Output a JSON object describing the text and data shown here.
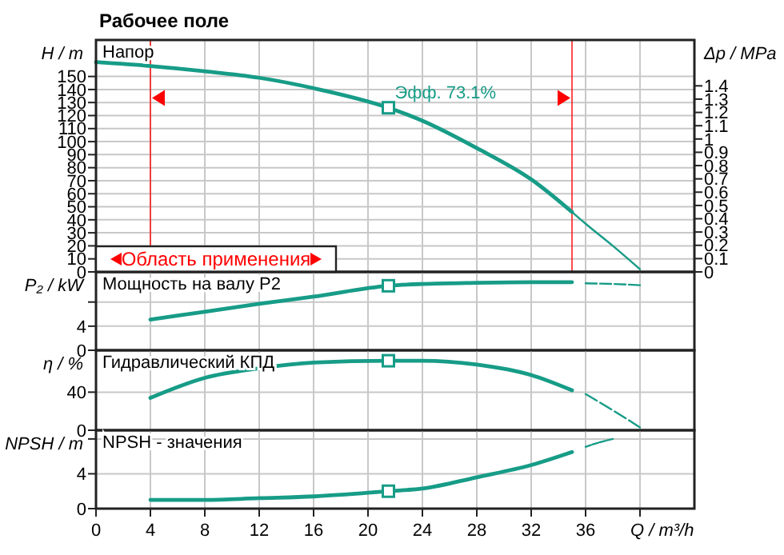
{
  "chart_data": [
    {
      "type": "line",
      "title": "Рабочее поле",
      "ylabel": "H / m",
      "y2label": "Δp / MPa",
      "xlim": [
        0,
        44
      ],
      "ylim": [
        0,
        178
      ],
      "yticks": [
        0,
        10,
        20,
        30,
        40,
        50,
        60,
        70,
        80,
        90,
        100,
        110,
        120,
        130,
        140,
        150
      ],
      "y2lim": [
        0,
        1.745
      ],
      "y2ticks": [
        0,
        0.1,
        0.2,
        0.3,
        0.4,
        0.5,
        0.6,
        0.7,
        0.8,
        0.9,
        1,
        1.1,
        1.2,
        1.3,
        1.4
      ],
      "xticks": [
        0,
        4,
        8,
        12,
        16,
        20,
        24,
        28,
        32,
        36,
        40
      ],
      "tick_labels": "y",
      "grid": true,
      "annotations": [
        "Напор",
        {
          "text": "Эфф.  73.1%",
          "x": 21.5,
          "y": 126
        },
        "Область применения"
      ],
      "ref_lines": [
        {
          "axis": "x",
          "value": 4,
          "color": "#ff0000"
        },
        {
          "axis": "x",
          "value": 35,
          "color": "#ff0000"
        }
      ],
      "series": [
        {
          "type": "line",
          "color": "#179c87",
          "line_style": "solid",
          "x": [
            0,
            4,
            8,
            12,
            16,
            21.5,
            24,
            28,
            32,
            35
          ],
          "values": [
            161,
            158,
            154,
            149,
            141,
            126,
            116,
            95,
            71,
            46
          ]
        },
        {
          "type": "line",
          "color": "#179c87",
          "line_style": "solid",
          "x": [
            35,
            36,
            38,
            40
          ],
          "values": [
            46,
            37,
            20,
            2
          ]
        },
        {
          "type": "scatter",
          "color": "#179c87",
          "marker": "square",
          "x": [
            21.5
          ],
          "values": [
            126
          ]
        }
      ]
    },
    {
      "type": "line",
      "ylabel": "P₂ / kW",
      "xlim": [
        0,
        44
      ],
      "ylim": [
        0,
        13
      ],
      "yticks": [
        0,
        4,
        {
          "value": 8,
          "label": null
        }
      ],
      "xticks": [
        0,
        4,
        8,
        12,
        16,
        20,
        24,
        28,
        32,
        36,
        40
      ],
      "tick_labels": "y",
      "grid": true,
      "annotations": [
        "Мощность на валу P2"
      ],
      "series": [
        {
          "type": "line",
          "color": "#179c87",
          "line_style": "solid",
          "x": [
            4,
            8,
            12,
            16,
            21.5,
            24,
            28,
            32,
            35
          ],
          "values": [
            5.1,
            6.4,
            7.7,
            8.9,
            10.7,
            11,
            11.2,
            11.3,
            11.3
          ]
        },
        {
          "type": "line",
          "color": "#179c87",
          "line_style": "dashed",
          "x": [
            36,
            38,
            40
          ],
          "values": [
            11.1,
            11,
            10.8
          ]
        },
        {
          "type": "scatter",
          "color": "#179c87",
          "marker": "square",
          "x": [
            21.5
          ],
          "values": [
            10.7
          ]
        }
      ]
    },
    {
      "type": "line",
      "ylabel": "η / %",
      "xlim": [
        0,
        44
      ],
      "ylim": [
        0,
        84
      ],
      "yticks": [
        0,
        40
      ],
      "xticks": [
        0,
        4,
        8,
        12,
        16,
        20,
        24,
        28,
        32,
        36,
        40
      ],
      "tick_labels": "y",
      "grid": true,
      "annotations": [
        "Гидравлический КПД"
      ],
      "series": [
        {
          "type": "line",
          "color": "#179c87",
          "line_style": "solid",
          "x": [
            4,
            8,
            12,
            16,
            21.5,
            24,
            28,
            32,
            35
          ],
          "values": [
            34,
            55,
            65,
            71,
            73,
            73,
            69,
            58,
            42
          ]
        },
        {
          "type": "line",
          "color": "#179c87",
          "line_style": "dashed",
          "x": [
            36,
            38,
            40
          ],
          "values": [
            38,
            21,
            3
          ]
        },
        {
          "type": "scatter",
          "color": "#179c87",
          "marker": "square",
          "x": [
            21.5
          ],
          "values": [
            73
          ]
        }
      ]
    },
    {
      "type": "line",
      "ylabel": "NPSH / m",
      "xlabel": "Q / m³/h",
      "xlim": [
        0,
        44
      ],
      "ylim": [
        0,
        9
      ],
      "yticks": [
        0,
        4,
        {
          "value": 8,
          "label": null
        }
      ],
      "xticks": [
        0,
        4,
        8,
        12,
        16,
        20,
        24,
        28,
        32,
        36,
        {
          "value": 40,
          "label": null
        }
      ],
      "grid": true,
      "annotations": [
        "NPSH - значения"
      ],
      "series": [
        {
          "type": "line",
          "color": "#179c87",
          "line_style": "solid",
          "x": [
            4,
            8,
            12,
            16,
            21.5,
            24,
            28,
            32,
            35
          ],
          "values": [
            1,
            1,
            1.2,
            1.4,
            2,
            2.3,
            3.6,
            5,
            6.5
          ]
        },
        {
          "type": "line",
          "color": "#179c87",
          "line_style": "dashed",
          "x": [
            36,
            37,
            38
          ],
          "values": [
            7.1,
            7.6,
            8
          ]
        },
        {
          "type": "scatter",
          "color": "#179c87",
          "marker": "square",
          "x": [
            21.5
          ],
          "values": [
            2
          ]
        }
      ]
    }
  ]
}
